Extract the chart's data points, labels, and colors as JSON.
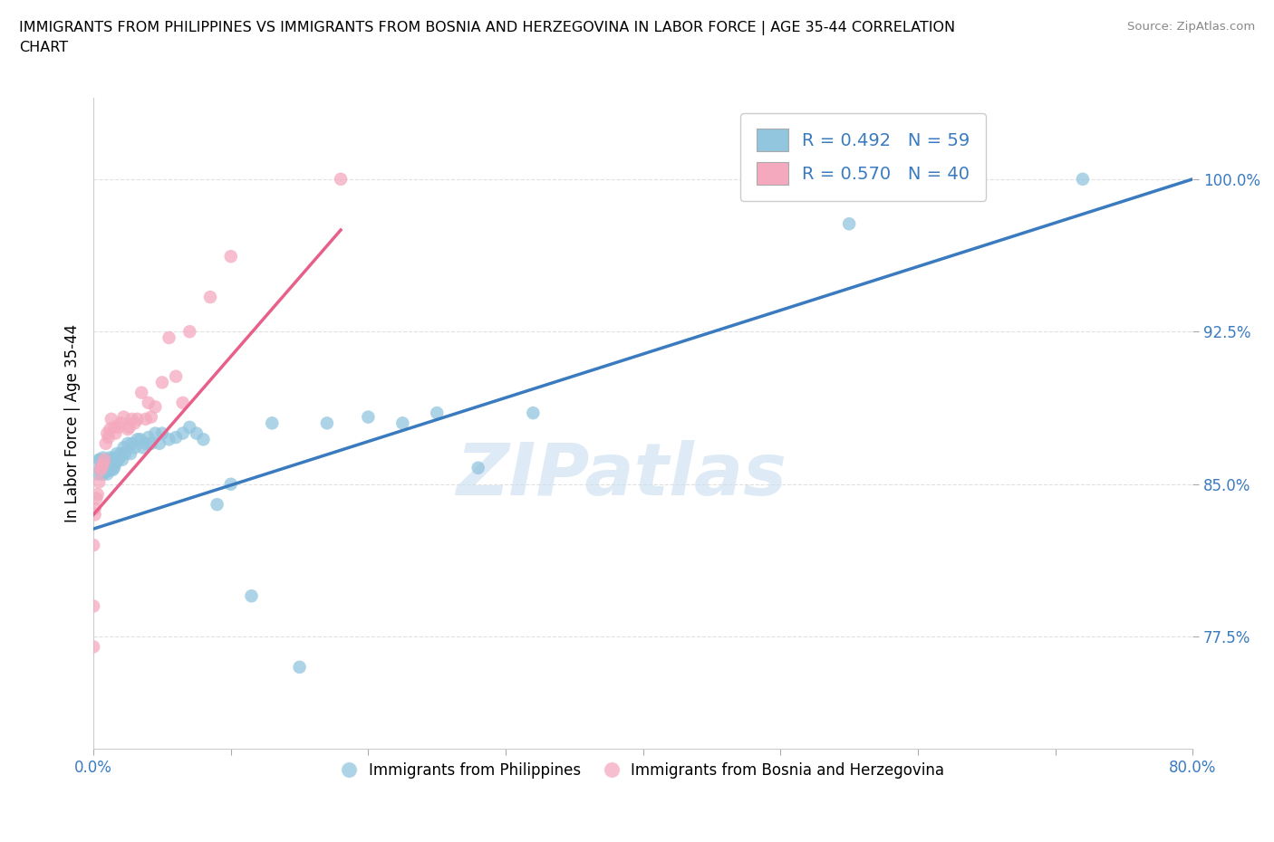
{
  "title": "IMMIGRANTS FROM PHILIPPINES VS IMMIGRANTS FROM BOSNIA AND HERZEGOVINA IN LABOR FORCE | AGE 35-44 CORRELATION\nCHART",
  "source_text": "Source: ZipAtlas.com",
  "xlabel_blue": "Immigrants from Philippines",
  "xlabel_pink": "Immigrants from Bosnia and Herzegovina",
  "ylabel": "In Labor Force | Age 35-44",
  "x_min": 0.0,
  "x_max": 0.8,
  "y_min": 0.72,
  "y_max": 1.04,
  "y_ticks": [
    0.775,
    0.85,
    0.925,
    1.0
  ],
  "y_tick_labels": [
    "77.5%",
    "85.0%",
    "92.5%",
    "100.0%"
  ],
  "R_blue": 0.492,
  "N_blue": 59,
  "R_pink": 0.57,
  "N_pink": 40,
  "color_blue": "#92c5de",
  "color_pink": "#f4a9be",
  "color_blue_line": "#3a7bbf",
  "color_pink_line": "#e8608a",
  "color_text_blue": "#3a7bbf",
  "watermark_color": "#c8dff0",
  "watermark_text": "ZIPatlas",
  "blue_line_x0": 0.0,
  "blue_line_y0": 0.828,
  "blue_line_x1": 0.8,
  "blue_line_y1": 1.0,
  "pink_line_x0": 0.0,
  "pink_line_y0": 0.835,
  "pink_line_x1": 0.18,
  "pink_line_y1": 0.975,
  "blue_scatter_x": [
    0.003,
    0.004,
    0.005,
    0.005,
    0.006,
    0.007,
    0.007,
    0.008,
    0.008,
    0.009,
    0.01,
    0.01,
    0.011,
    0.012,
    0.012,
    0.013,
    0.014,
    0.015,
    0.015,
    0.016,
    0.017,
    0.018,
    0.019,
    0.02,
    0.021,
    0.022,
    0.023,
    0.025,
    0.027,
    0.028,
    0.03,
    0.032,
    0.034,
    0.036,
    0.038,
    0.04,
    0.042,
    0.045,
    0.048,
    0.05,
    0.055,
    0.06,
    0.065,
    0.07,
    0.075,
    0.08,
    0.09,
    0.1,
    0.115,
    0.13,
    0.15,
    0.17,
    0.2,
    0.225,
    0.25,
    0.28,
    0.32,
    0.55,
    0.72
  ],
  "blue_scatter_y": [
    0.855,
    0.862,
    0.858,
    0.862,
    0.855,
    0.855,
    0.863,
    0.857,
    0.86,
    0.856,
    0.86,
    0.855,
    0.862,
    0.857,
    0.863,
    0.86,
    0.857,
    0.858,
    0.863,
    0.86,
    0.865,
    0.862,
    0.863,
    0.865,
    0.862,
    0.868,
    0.865,
    0.87,
    0.865,
    0.87,
    0.868,
    0.872,
    0.872,
    0.868,
    0.87,
    0.873,
    0.87,
    0.875,
    0.87,
    0.875,
    0.872,
    0.873,
    0.875,
    0.878,
    0.875,
    0.872,
    0.84,
    0.85,
    0.795,
    0.88,
    0.76,
    0.88,
    0.883,
    0.88,
    0.885,
    0.858,
    0.885,
    0.978,
    1.0
  ],
  "pink_scatter_x": [
    0.0,
    0.0,
    0.0,
    0.001,
    0.001,
    0.002,
    0.003,
    0.004,
    0.005,
    0.006,
    0.007,
    0.008,
    0.009,
    0.01,
    0.011,
    0.012,
    0.013,
    0.015,
    0.016,
    0.018,
    0.02,
    0.022,
    0.025,
    0.026,
    0.028,
    0.03,
    0.032,
    0.035,
    0.038,
    0.04,
    0.042,
    0.045,
    0.05,
    0.055,
    0.06,
    0.065,
    0.07,
    0.085,
    0.1,
    0.18
  ],
  "pink_scatter_y": [
    0.77,
    0.79,
    0.82,
    0.835,
    0.838,
    0.843,
    0.845,
    0.851,
    0.857,
    0.858,
    0.86,
    0.862,
    0.87,
    0.875,
    0.873,
    0.877,
    0.882,
    0.878,
    0.875,
    0.878,
    0.88,
    0.883,
    0.877,
    0.878,
    0.882,
    0.88,
    0.882,
    0.895,
    0.882,
    0.89,
    0.883,
    0.888,
    0.9,
    0.922,
    0.903,
    0.89,
    0.925,
    0.942,
    0.962,
    1.0
  ],
  "grid_color": "#dddddd",
  "background_color": "#ffffff"
}
